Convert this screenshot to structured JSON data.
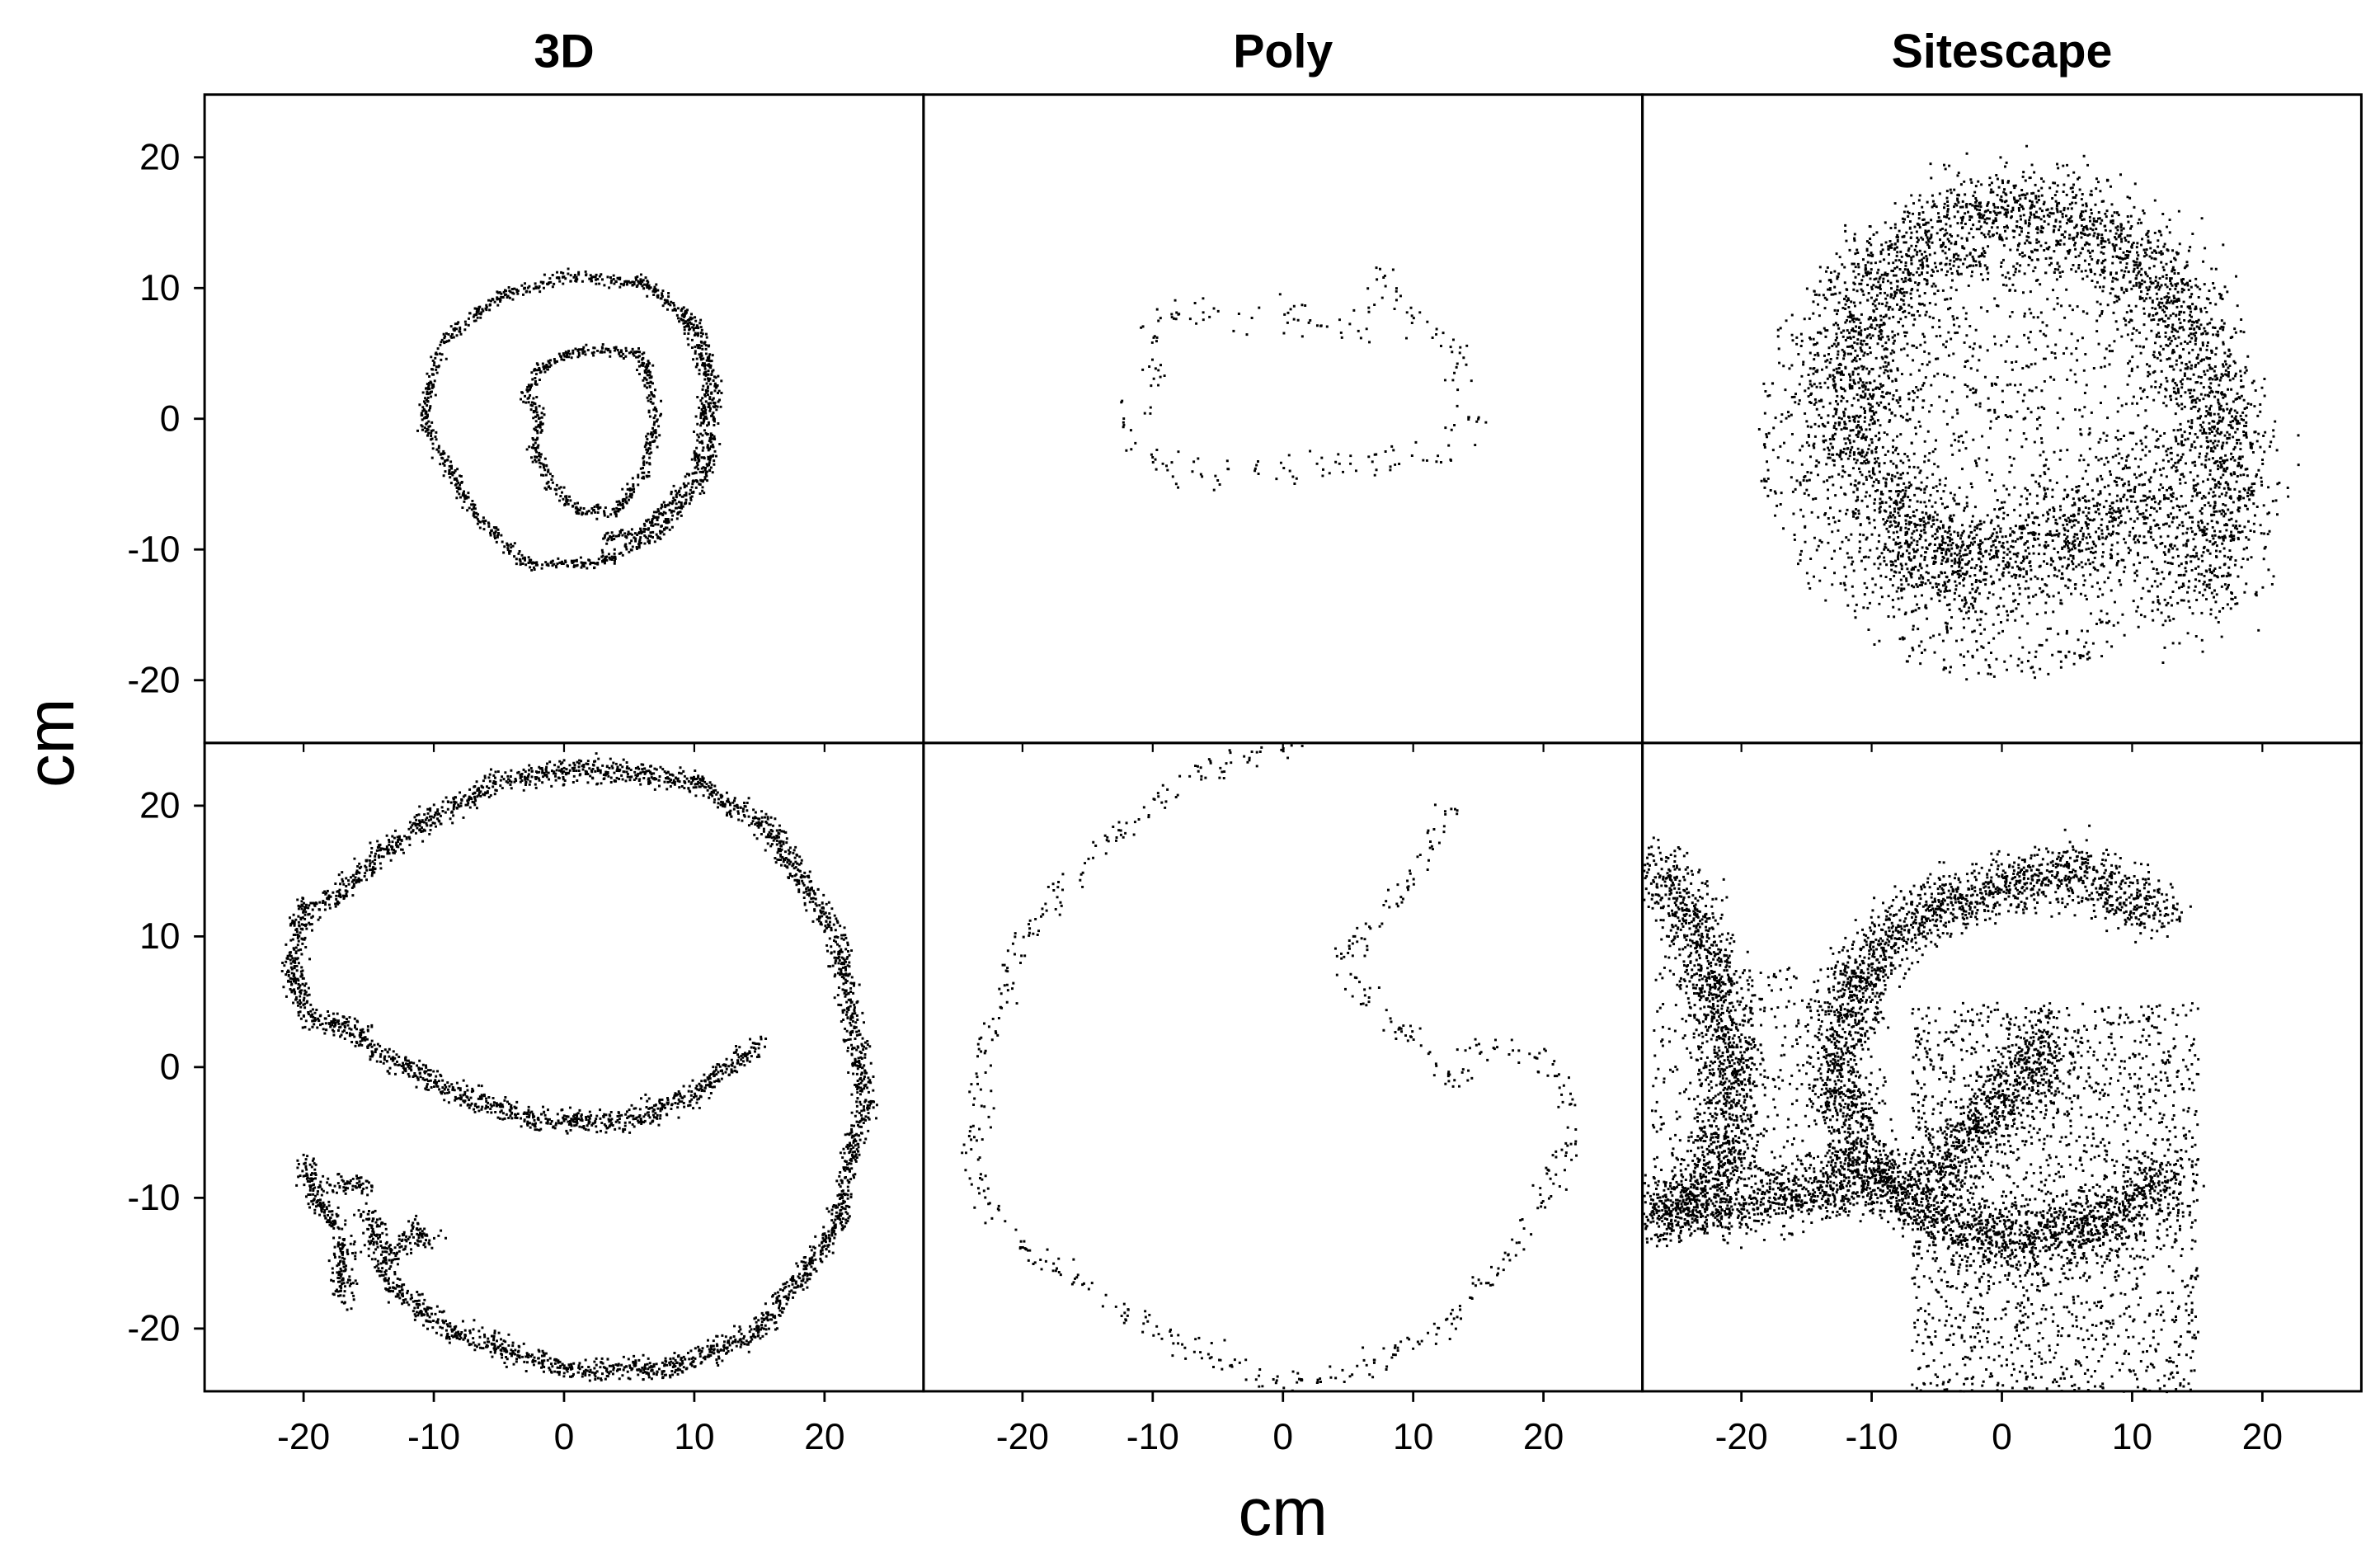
{
  "chart_data": {
    "type": "scatter",
    "layout": "2 rows x 3 columns, shared axes",
    "columns": [
      "3D",
      "Poly",
      "Sitescape"
    ],
    "xlabel": "cm",
    "ylabel": "cm",
    "xlim": [
      -27.6,
      27.6
    ],
    "ylim": [
      -24.8,
      24.8
    ],
    "xticks": [
      -20,
      -10,
      0,
      10,
      20
    ],
    "yticks": [
      20,
      10,
      0,
      -10,
      -20
    ],
    "grid": false,
    "marker_color": "#000000",
    "panels": [
      {
        "row": 1,
        "column": "3D",
        "spread": 0.25,
        "density": 14,
        "curves": [
          [
            [
              0,
              11
            ],
            [
              6,
              10.5
            ],
            [
              10,
              7.5
            ],
            [
              11.5,
              3
            ],
            [
              11,
              -4
            ],
            [
              7,
              -9
            ],
            [
              2,
              -11
            ],
            [
              -3,
              -11
            ],
            [
              -7,
              -7
            ],
            [
              -11,
              0
            ],
            [
              -9.5,
              6
            ],
            [
              -5,
              9.5
            ],
            [
              0,
              11
            ]
          ],
          [
            [
              -2,
              4
            ],
            [
              2,
              5.5
            ],
            [
              6,
              5
            ],
            [
              7,
              0
            ],
            [
              6,
              -4
            ],
            [
              4,
              -7
            ],
            [
              1,
              -7
            ],
            [
              -1,
              -5
            ],
            [
              -2.5,
              -2
            ],
            [
              -2,
              0
            ],
            [
              -3,
              2
            ],
            [
              -2,
              4
            ]
          ],
          [
            [
              9,
              8
            ],
            [
              11,
              3
            ],
            [
              10,
              -4
            ],
            [
              6,
              -8.5
            ],
            [
              3,
              -9
            ]
          ]
        ],
        "fill": []
      },
      {
        "row": 1,
        "column": "Poly",
        "spread": 0.7,
        "density": 3,
        "curves": [
          [
            [
              -10,
              8
            ],
            [
              -4,
              8.5
            ],
            [
              1,
              8
            ],
            [
              5,
              7
            ],
            [
              8,
              11
            ],
            [
              10,
              8
            ],
            [
              14,
              4
            ],
            [
              15,
              0
            ],
            [
              12,
              -2
            ],
            [
              8,
              -3
            ],
            [
              3,
              -3.5
            ],
            [
              -4,
              -3.5
            ],
            [
              -8,
              -4
            ],
            [
              -12,
              -2
            ],
            [
              -12,
              0
            ],
            [
              -10,
              4
            ],
            [
              -10,
              8
            ]
          ]
        ],
        "fill": []
      },
      {
        "row": 1,
        "column": "Sitescape",
        "spread": 2.0,
        "density": 40,
        "curves": [
          [
            [
              -5,
              -10
            ],
            [
              -10,
              -5
            ],
            [
              -12,
              2
            ],
            [
              -10,
              10
            ],
            [
              -4,
              15
            ],
            [
              2,
              16
            ],
            [
              9,
              14
            ],
            [
              14,
              8
            ],
            [
              17,
              0
            ],
            [
              17,
              -8
            ],
            [
              15,
              -14
            ]
          ],
          [
            [
              -7,
              -12
            ],
            [
              0,
              -10
            ],
            [
              7,
              -8
            ],
            [
              12,
              -5
            ]
          ]
        ],
        "fill": [
          {
            "x": [
              -19,
              18
            ],
            "y": [
              -20,
              18
            ],
            "count": 2200
          }
        ]
      },
      {
        "row": 2,
        "column": "3D",
        "spread": 0.45,
        "density": 22,
        "curves": [
          [
            [
              -14,
              -16
            ],
            [
              -9,
              -20
            ],
            [
              0,
              -23
            ],
            [
              8,
              -23
            ],
            [
              15,
              -20
            ],
            [
              21,
              -12
            ],
            [
              23,
              -2
            ],
            [
              21,
              10
            ],
            [
              16,
              18
            ],
            [
              10,
              22
            ],
            [
              2,
              23
            ],
            [
              -5,
              22
            ],
            [
              -12,
              18
            ],
            [
              -18,
              13
            ],
            [
              -20,
              12
            ],
            [
              -21,
              8
            ],
            [
              -20,
              4
            ],
            [
              -18,
              3
            ],
            [
              -17,
              3.5
            ],
            [
              -14,
              1
            ],
            [
              -8,
              -2
            ],
            [
              -2,
              -4
            ],
            [
              5,
              -4
            ],
            [
              10,
              -2
            ],
            [
              15,
              2
            ]
          ],
          [
            [
              -20,
              -7
            ],
            [
              -19,
              -10
            ],
            [
              -17,
              -13
            ],
            [
              -17,
              -18
            ]
          ],
          [
            [
              -18,
              -9
            ],
            [
              -15,
              -9
            ]
          ],
          [
            [
              -15,
              -11
            ],
            [
              -14,
              -15
            ],
            [
              -12,
              -13
            ]
          ],
          [
            [
              -12,
              -12
            ],
            [
              -11,
              -13
            ],
            [
              -10,
              -13
            ]
          ]
        ],
        "fill": []
      },
      {
        "row": 2,
        "column": "Poly",
        "spread": 0.5,
        "density": 4,
        "curves": [
          [
            [
              1,
              25
            ],
            [
              -6,
              23
            ],
            [
              -14,
              17
            ],
            [
              -20,
              10
            ],
            [
              -23,
              2
            ],
            [
              -24,
              -7
            ],
            [
              -22,
              -12
            ],
            [
              -15,
              -17
            ],
            [
              -8,
              -21
            ],
            [
              0,
              -24
            ],
            [
              6,
              -23
            ],
            [
              12,
              -20
            ],
            [
              17,
              -15
            ],
            [
              21,
              -8
            ],
            [
              22,
              -3
            ],
            [
              20,
              1
            ],
            [
              16,
              2
            ],
            [
              13,
              -1
            ],
            [
              9,
              3
            ],
            [
              4,
              8.5
            ],
            [
              8,
              12
            ],
            [
              12,
              18
            ],
            [
              13,
              20
            ]
          ]
        ],
        "fill": []
      },
      {
        "row": 2,
        "column": "Sitescape",
        "spread": 1.2,
        "density": 45,
        "curves": [
          [
            [
              12,
              12
            ],
            [
              6,
              15
            ],
            [
              0,
              14
            ],
            [
              -6,
              12
            ],
            [
              -11,
              8
            ],
            [
              -13,
              0
            ],
            [
              -11,
              -7
            ],
            [
              -6,
              -11
            ],
            [
              0,
              -13
            ],
            [
              7,
              -12
            ],
            [
              13,
              -8
            ]
          ],
          [
            [
              -27,
              16
            ],
            [
              -23,
              10
            ],
            [
              -21,
              2
            ],
            [
              -21,
              -6
            ],
            [
              -24,
              -10
            ],
            [
              -27,
              -11
            ]
          ],
          [
            [
              -27,
              -11
            ],
            [
              -20,
              -10.5
            ],
            [
              -13,
              -9
            ],
            [
              -8,
              -8
            ]
          ],
          [
            [
              -6,
              -9
            ],
            [
              -2,
              -5
            ],
            [
              2,
              0
            ],
            [
              4,
              3
            ]
          ]
        ],
        "fill": [
          {
            "x": [
              -7,
              15
            ],
            "y": [
              -25,
              5
            ],
            "count": 1800
          },
          {
            "x": [
              -27,
              -9
            ],
            "y": [
              -11,
              8
            ],
            "count": 500
          }
        ]
      }
    ]
  }
}
